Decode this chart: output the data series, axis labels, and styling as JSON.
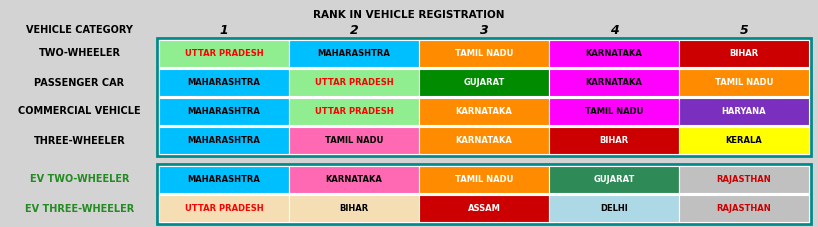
{
  "title": "RANK IN VEHICLE REGISTRATION",
  "header_row": [
    "VEHICLE CATEGORY",
    "1",
    "2",
    "3",
    "4",
    "5"
  ],
  "rows": [
    {
      "category": "TWO-WHEELER",
      "category_color": "#000000",
      "cells": [
        {
          "text": "UTTAR PRADESH",
          "bg": "#90EE90",
          "fg": "#FF0000"
        },
        {
          "text": "MAHARASHTRA",
          "bg": "#00BFFF",
          "fg": "#000000"
        },
        {
          "text": "TAMIL NADU",
          "bg": "#FF8C00",
          "fg": "#FFFFFF"
        },
        {
          "text": "KARNATAKA",
          "bg": "#FF00FF",
          "fg": "#000000"
        },
        {
          "text": "BIHAR",
          "bg": "#CC0000",
          "fg": "#FFFFFF"
        }
      ]
    },
    {
      "category": "PASSENGER CAR",
      "category_color": "#000000",
      "cells": [
        {
          "text": "MAHARASHTRA",
          "bg": "#00BFFF",
          "fg": "#000000"
        },
        {
          "text": "UTTAR PRADESH",
          "bg": "#90EE90",
          "fg": "#FF0000"
        },
        {
          "text": "GUJARAT",
          "bg": "#008B00",
          "fg": "#FFFFFF"
        },
        {
          "text": "KARNATAKA",
          "bg": "#FF00FF",
          "fg": "#000000"
        },
        {
          "text": "TAMIL NADU",
          "bg": "#FF8C00",
          "fg": "#FFFFFF"
        }
      ]
    },
    {
      "category": "COMMERCIAL VEHICLE",
      "category_color": "#000000",
      "cells": [
        {
          "text": "MAHARASHTRA",
          "bg": "#00BFFF",
          "fg": "#000000"
        },
        {
          "text": "UTTAR PRADESH",
          "bg": "#90EE90",
          "fg": "#FF0000"
        },
        {
          "text": "KARNATAKA",
          "bg": "#FF8C00",
          "fg": "#FFFFFF"
        },
        {
          "text": "TAMIL NADU",
          "bg": "#FF00FF",
          "fg": "#000000"
        },
        {
          "text": "HARYANA",
          "bg": "#7B2FBE",
          "fg": "#FFFFFF"
        }
      ]
    },
    {
      "category": "THREE-WHEELER",
      "category_color": "#000000",
      "cells": [
        {
          "text": "MAHARASHTRA",
          "bg": "#00BFFF",
          "fg": "#000000"
        },
        {
          "text": "TAMIL NADU",
          "bg": "#FF69B4",
          "fg": "#000000"
        },
        {
          "text": "KARNATAKA",
          "bg": "#FF8C00",
          "fg": "#FFFFFF"
        },
        {
          "text": "BIHAR",
          "bg": "#CC0000",
          "fg": "#FFFFFF"
        },
        {
          "text": "KERALA",
          "bg": "#FFFF00",
          "fg": "#000000"
        }
      ]
    }
  ],
  "ev_rows": [
    {
      "category": "EV TWO-WHEELER",
      "category_color": "#228B22",
      "cells": [
        {
          "text": "MAHARASHTRA",
          "bg": "#00BFFF",
          "fg": "#000000"
        },
        {
          "text": "KARNATAKA",
          "bg": "#FF69B4",
          "fg": "#000000"
        },
        {
          "text": "TAMIL NADU",
          "bg": "#FF8C00",
          "fg": "#FFFFFF"
        },
        {
          "text": "GUJARAT",
          "bg": "#2E8B57",
          "fg": "#FFFFFF"
        },
        {
          "text": "RAJASTHAN",
          "bg": "#C0C0C0",
          "fg": "#CC0000"
        }
      ]
    },
    {
      "category": "EV THREE-WHEELER",
      "category_color": "#228B22",
      "cells": [
        {
          "text": "UTTAR PRADESH",
          "bg": "#F5DEB3",
          "fg": "#FF0000"
        },
        {
          "text": "BIHAR",
          "bg": "#F5DEB3",
          "fg": "#000000"
        },
        {
          "text": "ASSAM",
          "bg": "#CC0000",
          "fg": "#FFFFFF"
        },
        {
          "text": "DELHI",
          "bg": "#ADD8E6",
          "fg": "#000000"
        },
        {
          "text": "RAJASTHAN",
          "bg": "#C0C0C0",
          "fg": "#CC0000"
        }
      ]
    }
  ],
  "bg_color": "#D3D3D3",
  "table_bg": "#FFFFFF",
  "border_color": "#008B8B",
  "cell_fontsize": 6.0,
  "cat_fontsize": 7.0,
  "header_fontsize": 7.5,
  "rank_fontsize": 9.0
}
